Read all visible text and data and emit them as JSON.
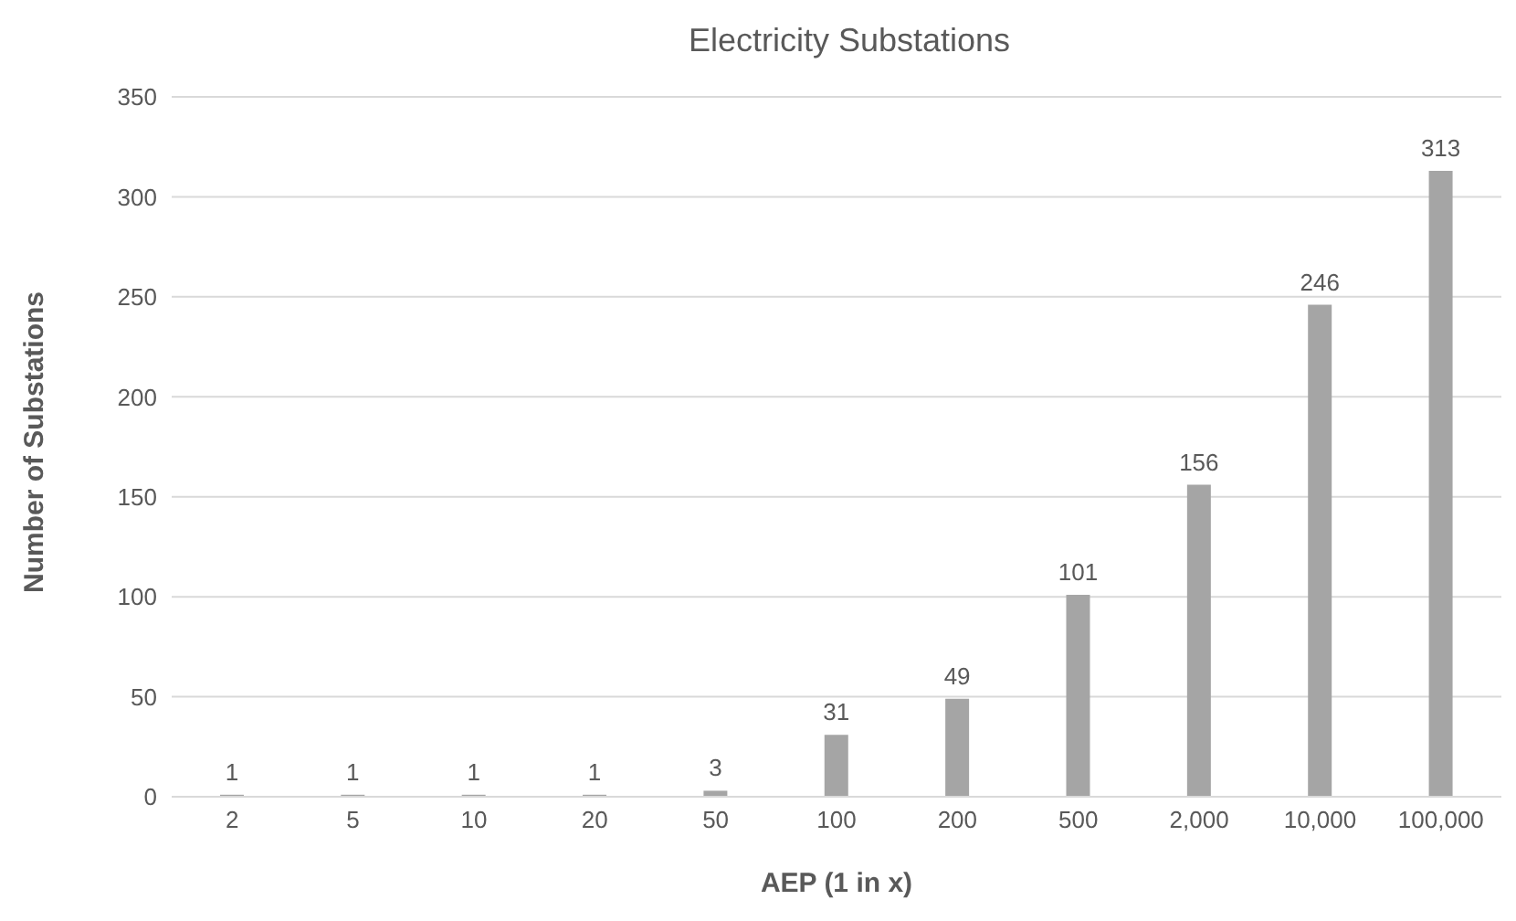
{
  "chart_data": {
    "type": "bar",
    "title": "Electricity Substations",
    "xlabel": "AEP (1 in x)",
    "ylabel": "Number of Substations",
    "categories": [
      "2",
      "5",
      "10",
      "20",
      "50",
      "100",
      "200",
      "500",
      "2,000",
      "10,000",
      "100,000"
    ],
    "values": [
      1,
      1,
      1,
      1,
      3,
      31,
      49,
      101,
      156,
      246,
      313
    ],
    "color": "#a5a5a5",
    "ylim": [
      0,
      350
    ],
    "yticks": [
      0,
      50,
      100,
      150,
      200,
      250,
      300,
      350
    ],
    "grid": "y",
    "data_labels": true
  }
}
